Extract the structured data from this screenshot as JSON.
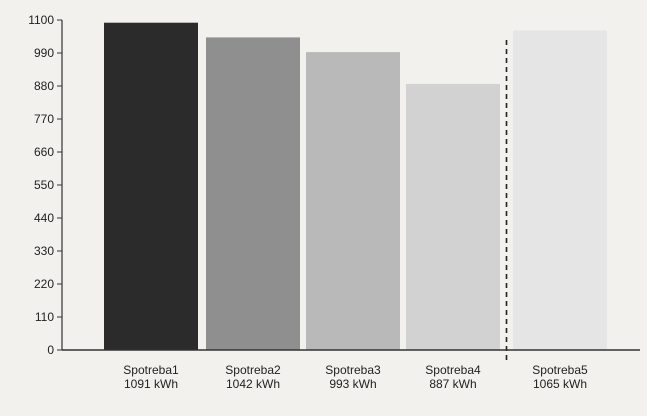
{
  "chart_data": {
    "type": "bar",
    "categories": [
      "Spotreba1",
      "Spotreba2",
      "Spotreba3",
      "Spotreba4",
      "Spotreba5"
    ],
    "value_labels": [
      "1091 kWh",
      "1042 kWh",
      "993 kWh",
      "887 kWh",
      "1065 kWh"
    ],
    "values": [
      1091,
      1042,
      993,
      887,
      1065
    ],
    "y_ticks": [
      "0",
      "110",
      "220",
      "330",
      "440",
      "550",
      "660",
      "770",
      "880",
      "990",
      "1100"
    ],
    "ylim": [
      0,
      1100
    ],
    "title": "",
    "xlabel": "",
    "ylabel": "",
    "grid": false,
    "bar_colors": [
      "#2b2b2b",
      "#8f8f8f",
      "#b9b9b9",
      "#d2d2d2",
      "#e5e5e5"
    ],
    "separator_before_index": 4
  }
}
